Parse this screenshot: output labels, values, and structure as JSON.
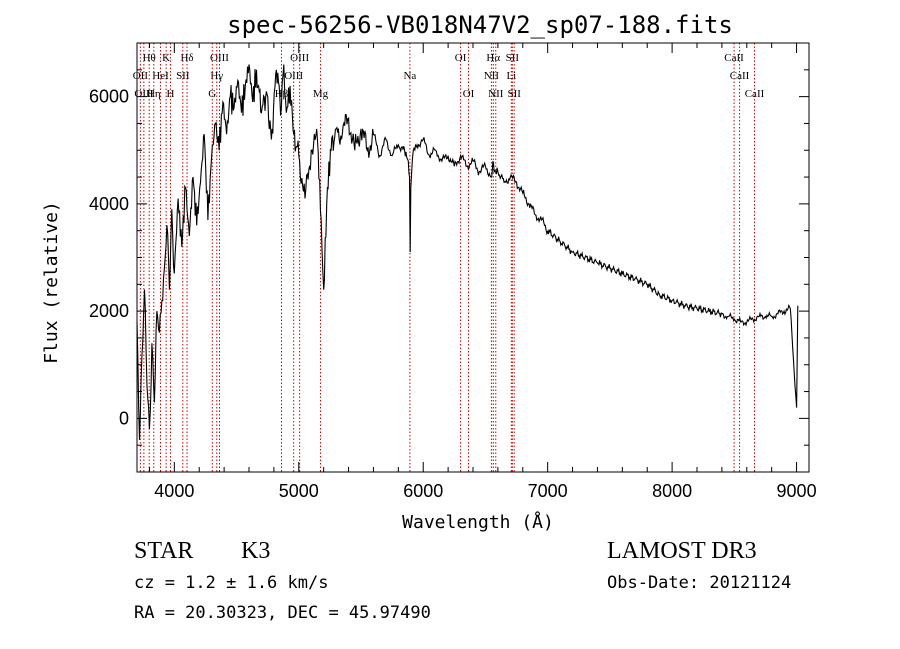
{
  "chart_data": {
    "type": "line",
    "title": "spec-56256-VB018N47V2_sp07-188.fits",
    "xlabel": "Wavelength (Å)",
    "ylabel": "Flux (relative)",
    "xlim": [
      3700,
      9100
    ],
    "ylim": [
      -1000,
      7000
    ],
    "xticks": [
      4000,
      5000,
      6000,
      7000,
      8000,
      9000
    ],
    "xtick_labels": [
      "4000",
      "5000",
      "6000",
      "7000",
      "8000",
      "9000"
    ],
    "yticks": [
      0,
      2000,
      4000,
      6000
    ],
    "ytick_labels": [
      "0",
      "2000",
      "4000",
      "6000"
    ],
    "grid": false,
    "series": [
      {
        "name": "spectrum",
        "color": "#000000",
        "x": [
          3700,
          3720,
          3740,
          3760,
          3780,
          3800,
          3820,
          3840,
          3860,
          3880,
          3900,
          3920,
          3940,
          3960,
          3980,
          4000,
          4030,
          4060,
          4090,
          4120,
          4150,
          4180,
          4210,
          4240,
          4270,
          4300,
          4330,
          4360,
          4390,
          4420,
          4450,
          4480,
          4510,
          4540,
          4570,
          4600,
          4630,
          4660,
          4700,
          4740,
          4780,
          4820,
          4860,
          4880,
          4900,
          4930,
          4960,
          5000,
          5050,
          5100,
          5150,
          5180,
          5200,
          5230,
          5260,
          5300,
          5350,
          5400,
          5450,
          5500,
          5550,
          5600,
          5650,
          5700,
          5750,
          5800,
          5850,
          5880,
          5890,
          5895,
          5900,
          5920,
          5950,
          6000,
          6050,
          6100,
          6150,
          6200,
          6250,
          6300,
          6350,
          6400,
          6450,
          6500,
          6550,
          6560,
          6570,
          6600,
          6650,
          6700,
          6750,
          6800,
          6850,
          6900,
          6950,
          7000,
          7100,
          7200,
          7300,
          7400,
          7500,
          7600,
          7700,
          7800,
          7900,
          8000,
          8100,
          8200,
          8300,
          8400,
          8450,
          8500,
          8550,
          8600,
          8650,
          8700,
          8750,
          8800,
          8850,
          8900,
          8950,
          9000,
          9010
        ],
        "y": [
          1800,
          -400,
          1200,
          2400,
          600,
          -200,
          1400,
          300,
          2000,
          1600,
          2200,
          2800,
          3600,
          2400,
          3900,
          2700,
          4100,
          3200,
          4300,
          3400,
          4500,
          3600,
          4400,
          5300,
          3700,
          4900,
          5500,
          5000,
          5900,
          5300,
          6000,
          5800,
          6300,
          5700,
          6200,
          6600,
          5900,
          6500,
          5700,
          6100,
          5200,
          6500,
          5800,
          6600,
          5700,
          6200,
          5300,
          4900,
          4100,
          5000,
          5200,
          3700,
          2400,
          4300,
          5000,
          5400,
          5300,
          5600,
          5000,
          5400,
          5000,
          5300,
          4900,
          5200,
          4900,
          5100,
          5000,
          4800,
          4500,
          3100,
          4300,
          5000,
          5100,
          5200,
          4900,
          5000,
          4800,
          4900,
          4700,
          4900,
          4700,
          4800,
          4600,
          4700,
          4500,
          4800,
          4600,
          4600,
          4400,
          4500,
          4400,
          4200,
          4000,
          3800,
          3700,
          3500,
          3300,
          3100,
          3000,
          2900,
          2800,
          2700,
          2600,
          2500,
          2300,
          2200,
          2100,
          2050,
          2000,
          1950,
          1900,
          1850,
          1800,
          1800,
          1850,
          1900,
          1900,
          1900,
          1950,
          2000,
          2050,
          200,
          2100
        ]
      }
    ],
    "lines": [
      {
        "label": "Hθ",
        "wave": 3798,
        "row": 0
      },
      {
        "label": "K",
        "wave": 3934,
        "row": 0
      },
      {
        "label": "Hδ",
        "wave": 4102,
        "row": 0
      },
      {
        "label": "OIII",
        "wave": 4363,
        "row": 0
      },
      {
        "label": "OIII",
        "wave": 5007,
        "row": 0
      },
      {
        "label": "OI",
        "wave": 6300,
        "row": 0
      },
      {
        "label": "Hα",
        "wave": 6563,
        "row": 0
      },
      {
        "label": "SII",
        "wave": 6716,
        "row": 0
      },
      {
        "label": "CaII",
        "wave": 8498,
        "row": 0
      },
      {
        "label": "OII",
        "wave": 3727,
        "row": 1
      },
      {
        "label": "HeI",
        "wave": 3889,
        "row": 1
      },
      {
        "label": "SII",
        "wave": 4068,
        "row": 1
      },
      {
        "label": "Hγ",
        "wave": 4341,
        "row": 1
      },
      {
        "label": "OIII",
        "wave": 4959,
        "row": 1
      },
      {
        "label": "Na",
        "wave": 5893,
        "row": 1
      },
      {
        "label": "NII",
        "wave": 6548,
        "row": 1
      },
      {
        "label": "Li",
        "wave": 6708,
        "row": 1
      },
      {
        "label": "CaII",
        "wave": 8542,
        "row": 1
      },
      {
        "label": "OIII",
        "wave": 3755,
        "row": 2
      },
      {
        "label": "Hη",
        "wave": 3835,
        "row": 2
      },
      {
        "label": "H",
        "wave": 3969,
        "row": 2
      },
      {
        "label": "G",
        "wave": 4305,
        "row": 2
      },
      {
        "label": "Hβ",
        "wave": 4861,
        "row": 2
      },
      {
        "label": "Mg",
        "wave": 5175,
        "row": 2
      },
      {
        "label": "OI",
        "wave": 6364,
        "row": 2
      },
      {
        "label": "NII",
        "wave": 6583,
        "row": 2
      },
      {
        "label": "SII",
        "wave": 6731,
        "row": 2
      },
      {
        "label": "CaII",
        "wave": 8662,
        "row": 2
      }
    ]
  },
  "info": {
    "object_class": "STAR",
    "subclass": "K3",
    "redshift": "cz =  1.2 ± 1.6 km/s",
    "coords": "RA =   20.30323, DEC =   45.97490",
    "survey": "LAMOST DR3",
    "obs_date": "Obs-Date: 20121124"
  }
}
